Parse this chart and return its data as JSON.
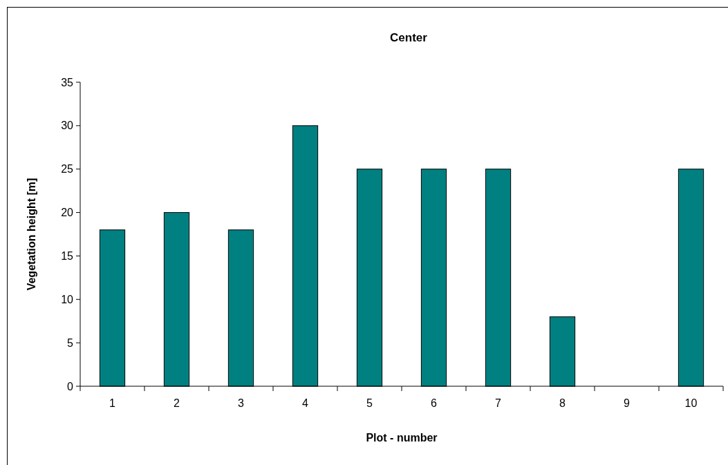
{
  "chart_data": {
    "type": "bar",
    "title": "Center",
    "xlabel": "Plot - number",
    "ylabel": "Vegetation height [m]",
    "categories": [
      "1",
      "2",
      "3",
      "4",
      "5",
      "6",
      "7",
      "8",
      "9",
      "10"
    ],
    "values": [
      18,
      20,
      18,
      30,
      25,
      25,
      25,
      8,
      null,
      25
    ],
    "color": "#008080",
    "ylim": [
      0,
      35
    ],
    "yticks": [
      0,
      5,
      10,
      15,
      20,
      25,
      30,
      35
    ],
    "grid": false
  }
}
